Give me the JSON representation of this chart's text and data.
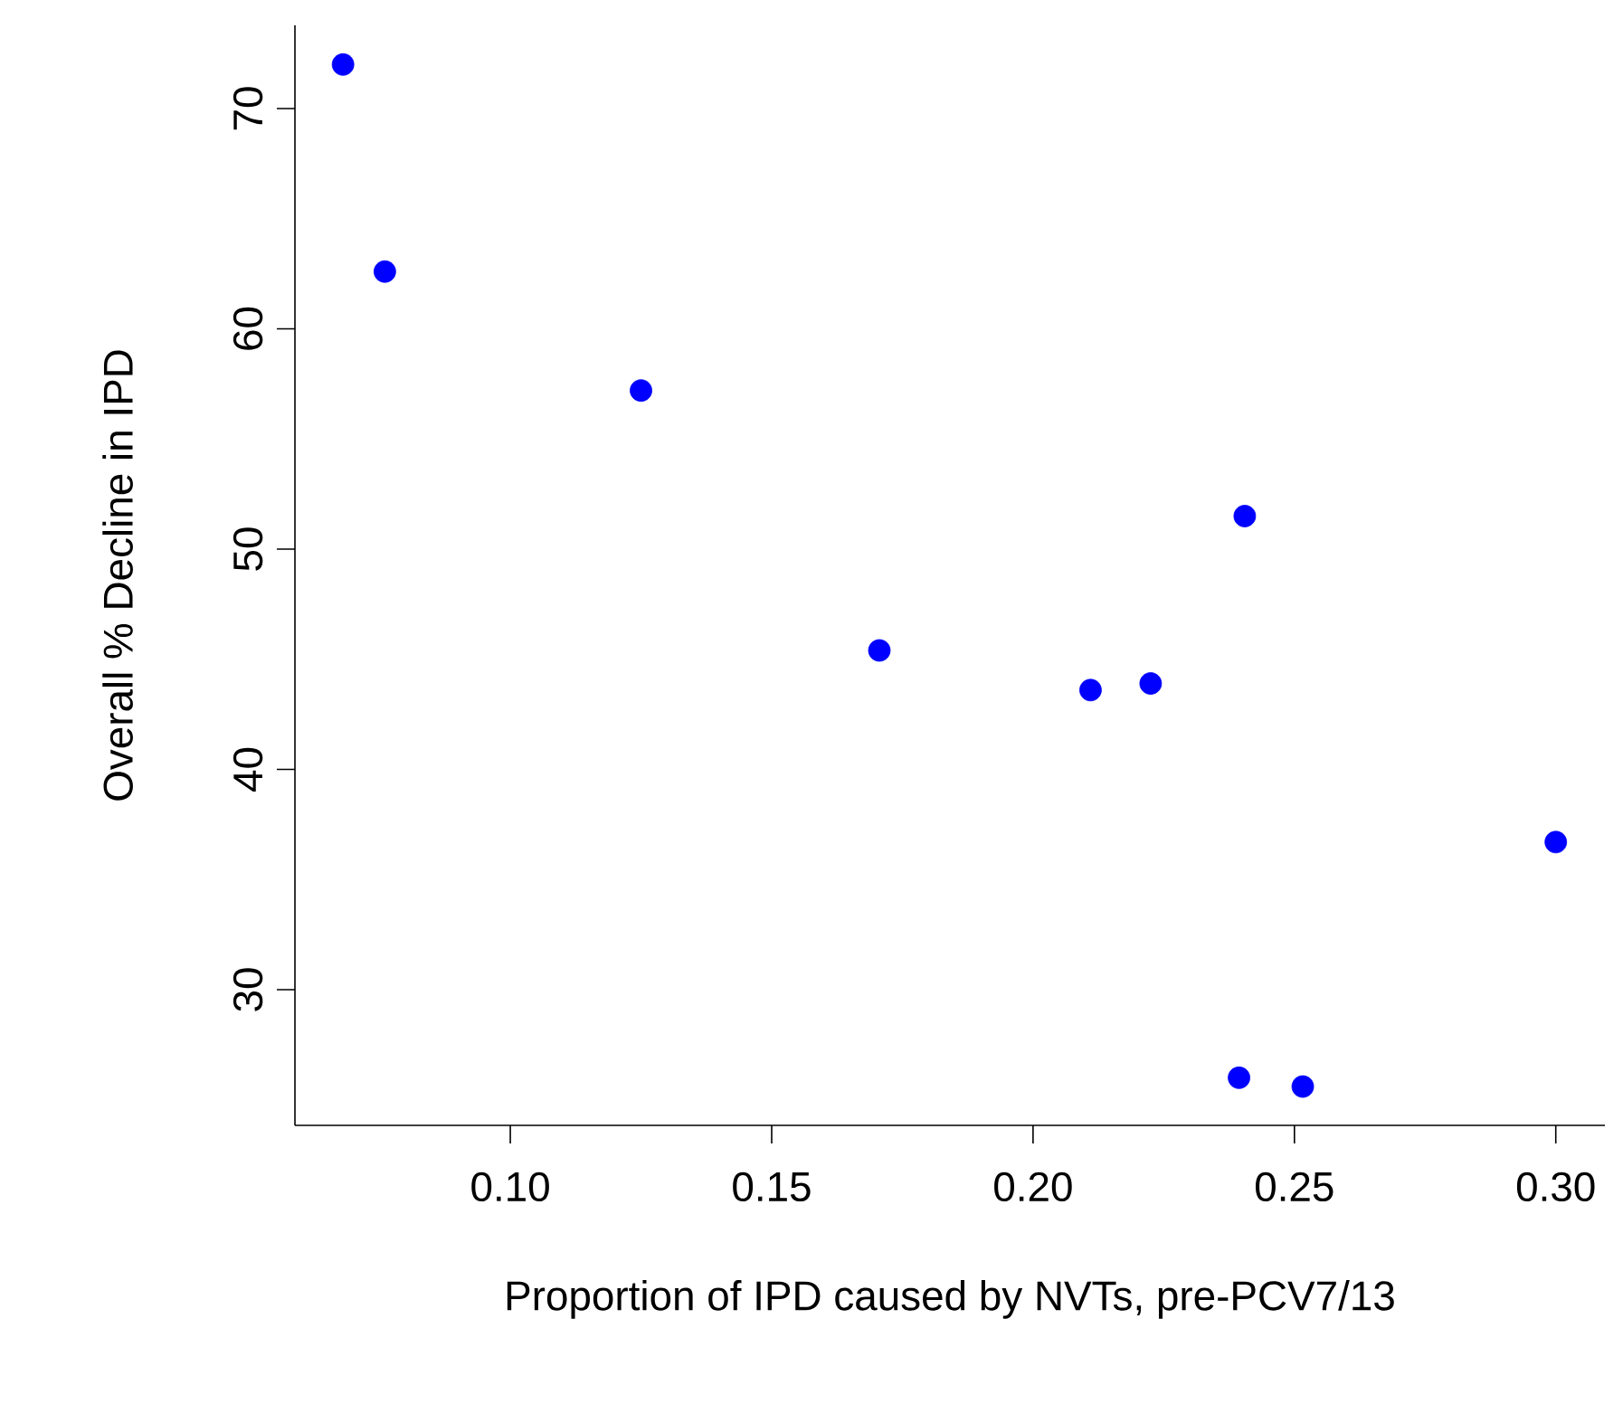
{
  "chart_data": {
    "type": "scatter",
    "xlabel": "Proportion of IPD caused by NVTs, pre-PCV7/13",
    "ylabel": "Overall % Decline in IPD",
    "x": [
      0.068,
      0.076,
      0.125,
      0.1706,
      0.211,
      0.2225,
      0.2405,
      0.3,
      0.2394,
      0.2516
    ],
    "values": [
      72.0,
      62.6,
      57.2,
      45.4,
      43.6,
      43.9,
      51.5,
      36.7,
      26.0,
      25.6
    ],
    "color": "#0000ff",
    "marker": "circle",
    "grid": false,
    "xlim": [
      0.0588,
      0.3094
    ],
    "ylim": [
      23.84,
      73.78
    ],
    "xticks": [
      {
        "value": 0.1,
        "label": "0.10"
      },
      {
        "value": 0.15,
        "label": "0.15"
      },
      {
        "value": 0.2,
        "label": "0.20"
      },
      {
        "value": 0.25,
        "label": "0.25"
      },
      {
        "value": 0.3,
        "label": "0.30"
      }
    ],
    "yticks": [
      30,
      40,
      50,
      60,
      70
    ]
  }
}
